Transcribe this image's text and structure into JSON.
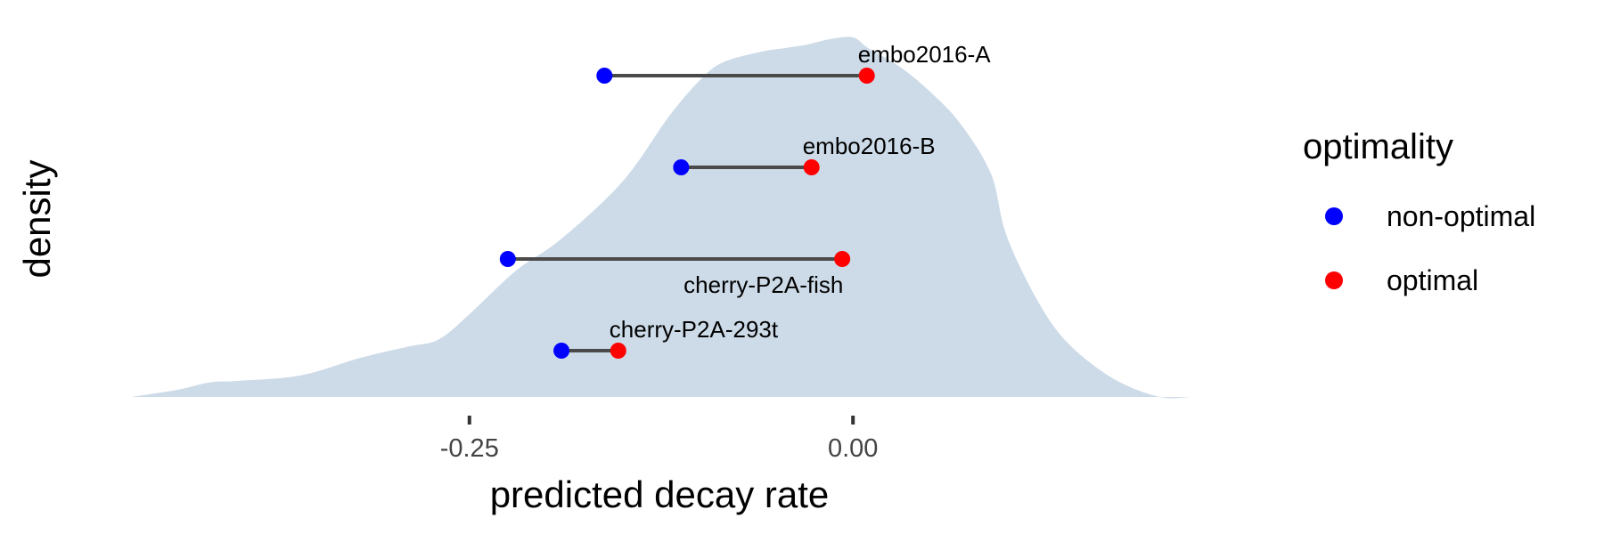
{
  "chart_data": {
    "type": "dumbbell-over-density",
    "xlabel": "predicted decay rate",
    "ylabel": "density",
    "xlim": [
      -0.47,
      0.22
    ],
    "x_ticks": [
      {
        "value": -0.25,
        "label": "-0.25"
      },
      {
        "value": 0.0,
        "label": "0.00"
      }
    ],
    "density": {
      "color": "#cddbe8",
      "x": [
        -0.47,
        -0.44,
        -0.42,
        -0.4,
        -0.36,
        -0.32,
        -0.29,
        -0.27,
        -0.25,
        -0.22,
        -0.19,
        -0.15,
        -0.12,
        -0.1,
        -0.085,
        -0.06,
        -0.045,
        -0.03,
        -0.015,
        0.0,
        0.01,
        0.03,
        0.05,
        0.07,
        0.09,
        0.1,
        0.12,
        0.14,
        0.17,
        0.2,
        0.22
      ],
      "y": [
        0.0,
        0.02,
        0.04,
        0.045,
        0.06,
        0.11,
        0.14,
        0.16,
        0.23,
        0.35,
        0.44,
        0.6,
        0.78,
        0.88,
        0.93,
        0.96,
        0.97,
        0.98,
        0.995,
        1.0,
        0.97,
        0.92,
        0.85,
        0.76,
        0.62,
        0.45,
        0.27,
        0.15,
        0.05,
        0.0,
        0.0
      ]
    },
    "series": [
      {
        "name": "non-optimal",
        "color": "#0000ff"
      },
      {
        "name": "optimal",
        "color": "#ff0000"
      }
    ],
    "pairs": [
      {
        "label": "embo2016-A",
        "non_optimal": -0.162,
        "optimal": 0.009,
        "label_position": "above"
      },
      {
        "label": "embo2016-B",
        "non_optimal": -0.112,
        "optimal": -0.027,
        "label_position": "above"
      },
      {
        "label": "cherry-P2A-fish",
        "non_optimal": -0.225,
        "optimal": -0.007,
        "label_position": "below"
      },
      {
        "label": "cherry-P2A-293t",
        "non_optimal": -0.19,
        "optimal": -0.153,
        "label_position": "above"
      }
    ],
    "legend": {
      "title": "optimality",
      "placement": "right"
    }
  }
}
